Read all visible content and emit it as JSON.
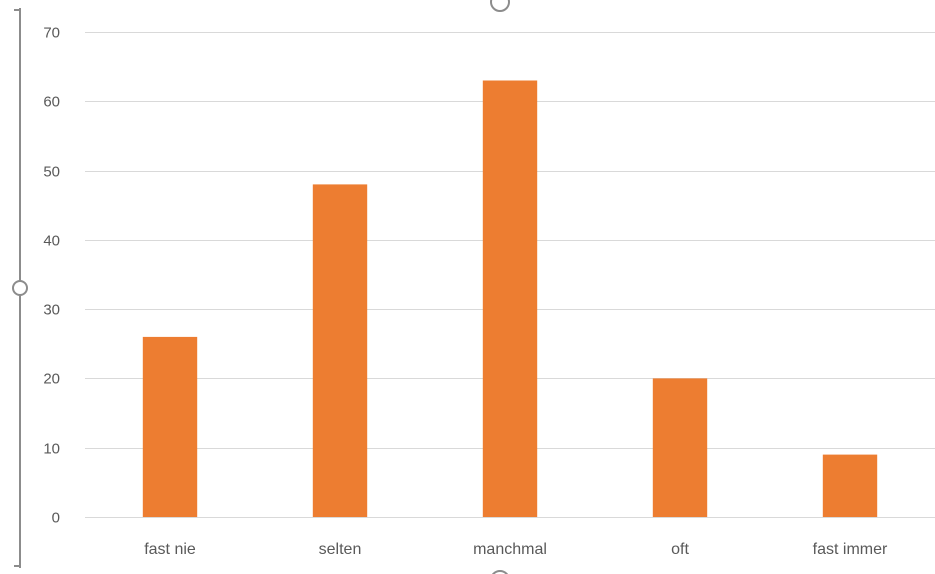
{
  "chart_data": {
    "type": "bar",
    "categories": [
      "fast nie",
      "selten",
      "manchmal",
      "oft",
      "fast immer"
    ],
    "values": [
      26,
      48,
      63,
      20,
      9
    ],
    "title": "",
    "xlabel": "",
    "ylabel": "",
    "ylim": [
      0,
      70
    ],
    "yticks": [
      0,
      10,
      20,
      30,
      40,
      50,
      60,
      70
    ],
    "grid": true,
    "legend": "none",
    "bar_color": "#ED7D31",
    "grid_color": "#D9D9D9",
    "text_color": "#595959"
  }
}
